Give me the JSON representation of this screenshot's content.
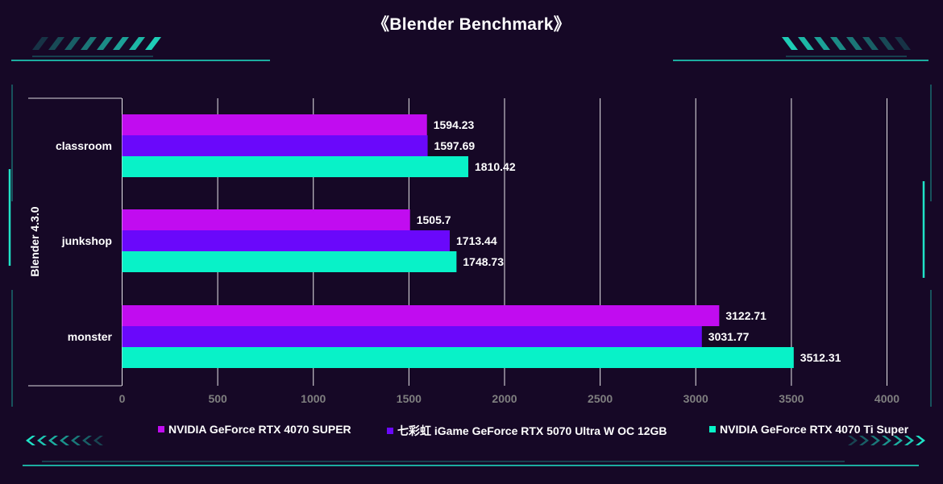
{
  "chart_data": {
    "type": "bar",
    "orientation": "horizontal",
    "title": "《Blender Benchmark》",
    "ylabel": "Blender 4.3.0",
    "xlabel": "",
    "categories": [
      "classroom",
      "junkshop",
      "monster"
    ],
    "series": [
      {
        "name": "NVIDIA GeForce RTX 4070 SUPER",
        "color": "#c10cf0",
        "values": [
          1594.23,
          1505.7,
          3122.71
        ]
      },
      {
        "name": "七彩虹 iGame GeForce RTX 5070 Ultra W OC 12GB",
        "color": "#6a08fb",
        "values": [
          1597.69,
          1713.44,
          3031.77
        ]
      },
      {
        "name": "NVIDIA GeForce RTX 4070 Ti Super",
        "color": "#08f2c8",
        "values": [
          1810.42,
          1748.73,
          3512.31
        ]
      }
    ],
    "xlim": [
      0,
      4000
    ],
    "xticks": [
      "0",
      "500",
      "1000",
      "1500",
      "2000",
      "2500",
      "3000",
      "3500",
      "4000"
    ],
    "grid": true,
    "legend_position": "bottom"
  },
  "theme": {
    "background": "#160826",
    "accent": "#1fe3c7",
    "text": "#ffffff",
    "tick_text": "#7f7f7f",
    "gridline": "#ffffff"
  },
  "decor": {
    "left_icon": "chevron-stripes-icon",
    "right_icon": "chevron-stripes-icon"
  }
}
